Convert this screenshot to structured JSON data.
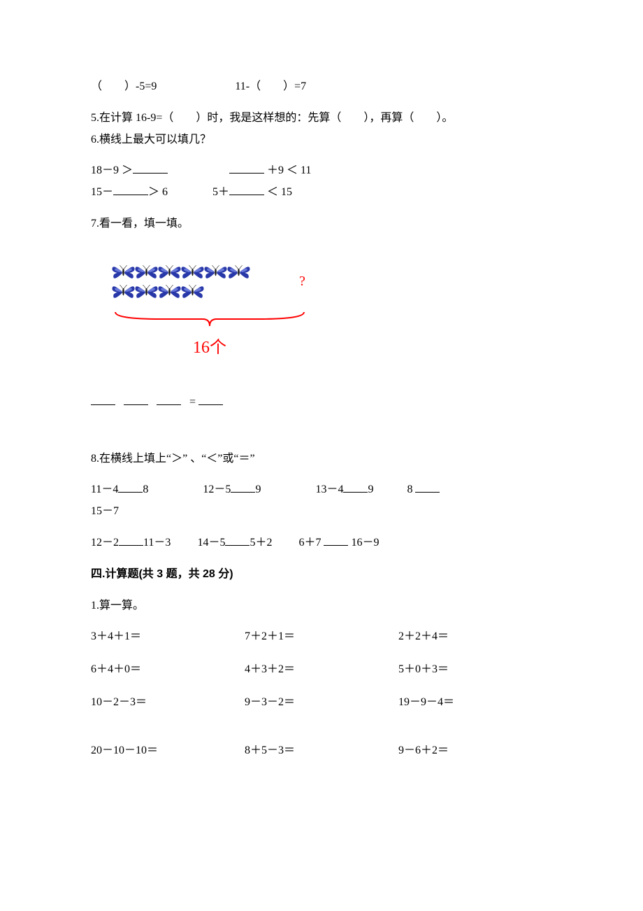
{
  "q_blank": "（　　）-5=9　　　　　　　11-（　　）=7",
  "q5": "5.在计算 16-9=（　　）时，我是这样想的：先算（　　），再算（　　）。",
  "q6_title": "6.横线上最大可以填几？",
  "q6_row1_a": "18－9 ＞",
  "q6_row1_b": " ＋9 ＜ 11",
  "q6_row2_a_pre": "15－",
  "q6_row2_a_post": "＞ 6",
  "q6_row2_b_pre": "5＋",
  "q6_row2_b_post": " ＜ 15",
  "q7_title": "7.看一看，填一填。",
  "figure": {
    "rows": [
      6,
      4
    ],
    "question_mark": "?",
    "count_label": "16个",
    "brace_color": "#ff0000",
    "butterfly_colors": {
      "wing_outer": "#2838a8",
      "wing_inner": "#6878d8",
      "body": "#1a1a1a"
    }
  },
  "q7_answer": "　　　　　　　　　=",
  "q8_title": "8.在横线上填上“＞” 、“＜”或“＝”",
  "q8_r1": {
    "a_pre": "11－4",
    "a_post": "8",
    "b_pre": "12－5",
    "b_post": "9",
    "c_pre": "13－4",
    "c_post": "9",
    "d_pre": "8 ",
    "d_post": ""
  },
  "q8_r1_wrap": "15－7",
  "q8_r2": {
    "a_pre": "12－2",
    "a_post": "11－3",
    "b_pre": "14－5",
    "b_post": "5＋2",
    "c_pre": "6＋7 ",
    "c_post": " 16－9"
  },
  "section4": "四.计算题(共 3 题，共 28 分)",
  "s4_q1": "1.算一算。",
  "calc_title_fontsize": 16,
  "calc": [
    [
      "3＋4＋1＝",
      "7＋2＋1＝",
      "2＋2＋4＝"
    ],
    [
      "6＋4＋0＝",
      "4＋3＋2＝",
      "5＋0＋3＝"
    ],
    [
      "10－2－3＝",
      "9－3－2＝",
      "19－9－4＝"
    ],
    [
      "20－10－10＝",
      "8＋5－3＝",
      "9－6＋2＝"
    ]
  ]
}
